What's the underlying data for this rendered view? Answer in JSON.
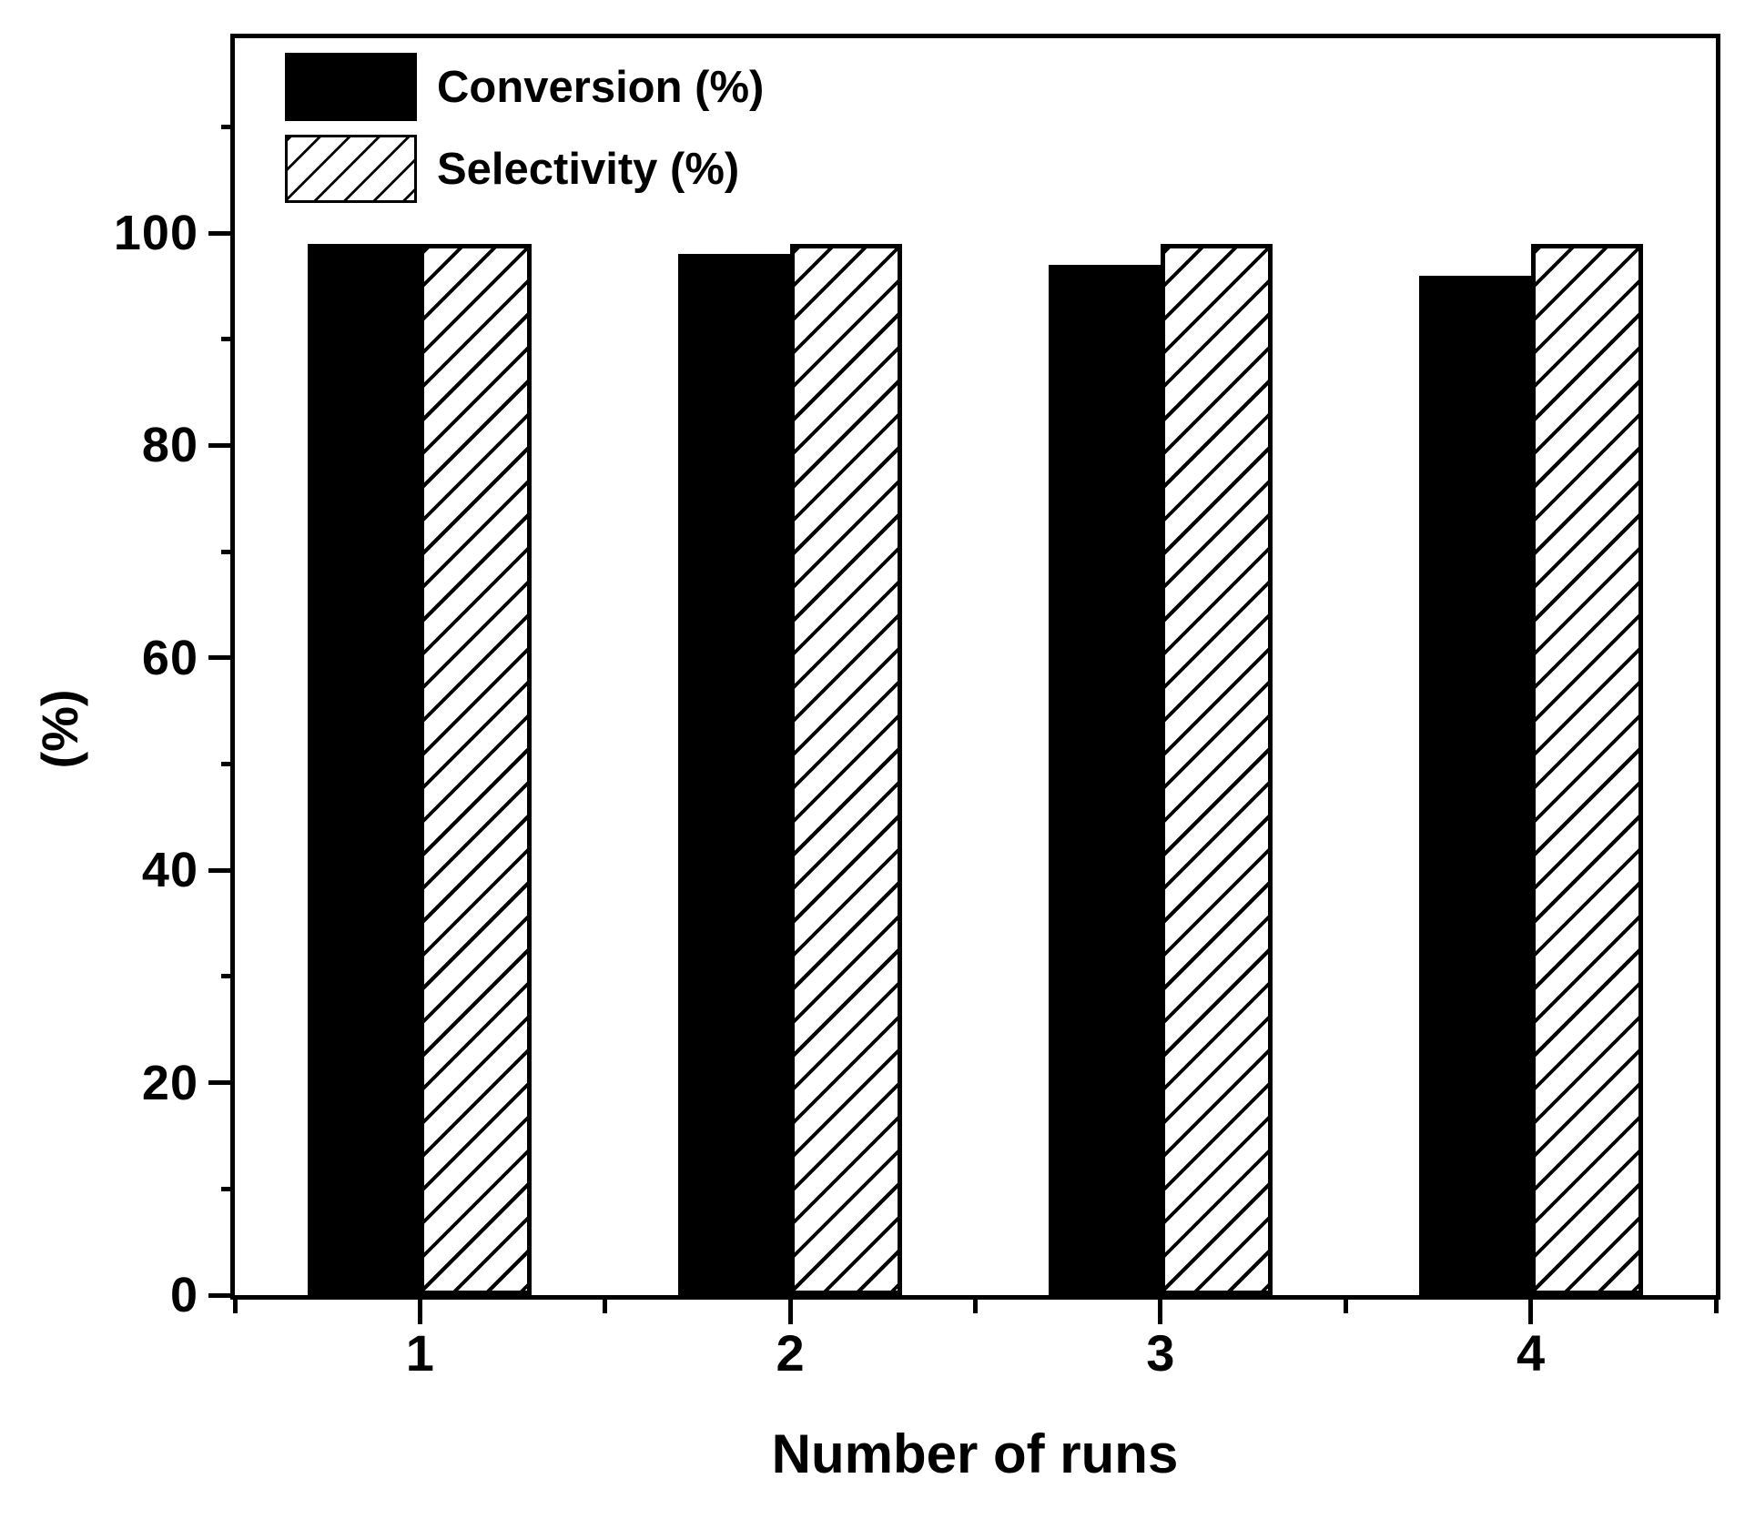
{
  "chart_data": {
    "type": "bar",
    "title": "",
    "categories": [
      "1",
      "2",
      "3",
      "4"
    ],
    "series": [
      {
        "name": "Conversion (%)",
        "values": [
          99,
          98,
          97,
          96
        ],
        "style": "solid",
        "color": "#000000"
      },
      {
        "name": "Selectivity (%)",
        "values": [
          99,
          99,
          99,
          99
        ],
        "style": "hatched",
        "hatch": "/",
        "color": "#000000"
      }
    ],
    "xlabel": "Number of runs",
    "ylabel": "(%)",
    "ylim": [
      0,
      118.5
    ],
    "yticks_major": [
      0,
      20,
      40,
      60,
      80,
      100
    ],
    "yticks_minor": [
      10,
      30,
      50,
      70,
      90,
      110
    ],
    "grid": false,
    "legend_position": "top-left",
    "background": "#ffffff",
    "axis_color": "#000000"
  },
  "legend": {
    "items": [
      {
        "label": "Conversion (%)",
        "swatch": "solid"
      },
      {
        "label": "Selectivity (%)",
        "swatch": "hatched"
      }
    ]
  },
  "axes": {
    "xlabel": "Number of runs",
    "ylabel": "(%)"
  }
}
